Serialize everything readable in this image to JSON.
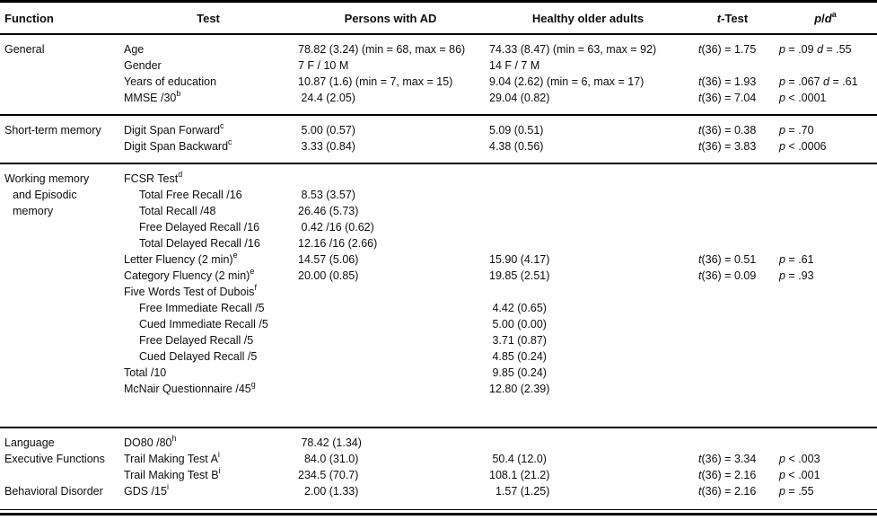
{
  "colors": {
    "background": "#ffffff",
    "text": "#0e0e0e",
    "rules": "#000000"
  },
  "table": {
    "headers": {
      "function": "Function",
      "test": "Test",
      "ad": "Persons with AD",
      "healthy": "Healthy older adults",
      "ttest": "t-Test",
      "pd": "p/d",
      "pd_sup": "a"
    },
    "sections": [
      {
        "rows": [
          {
            "fn": "General",
            "test": "Age",
            "ad": "78.82 (3.24) (min = 68, max = 86)",
            "healthy": "74.33 (8.47) (min = 63, max = 92)",
            "t": "t(36) = 1.75",
            "pd": "p = .09 d = .55"
          },
          {
            "test": "Gender",
            "ad": "7 F / 10 M",
            "healthy": "14 F / 7 M"
          },
          {
            "test": "Years of education",
            "ad": "10.87 (1.6) (min = 7, max = 15)",
            "healthy": "9.04 (2.62) (min = 6, max = 17)",
            "t": "t(36) = 1.93",
            "pd": "p = .067 d = .61"
          },
          {
            "test": "MMSE /30",
            "sup": "b",
            "ad": " 24.4 (2.05)",
            "healthy": "29.04 (0.82)",
            "t": "t(36) = 7.04",
            "pd": "p < .0001"
          }
        ]
      },
      {
        "rows": [
          {
            "fn": "Short-term memory",
            "test": "Digit Span Forward",
            "sup": "c",
            "ad": " 5.00 (0.57)",
            "healthy": "5.09 (0.51)",
            "t": "t(36) = 0.38",
            "pd": "p = .70"
          },
          {
            "test": "Digit Span Backward",
            "sup": "c",
            "ad": " 3.33 (0.84)",
            "healthy": "4.38 (0.56)",
            "t": "t(36) = 3.83",
            "pd": "p < .0006"
          }
        ]
      },
      {
        "rows": [
          {
            "fn_lines": [
              "Working memory",
              "and Episodic",
              "memory"
            ],
            "test": "FCSR Test",
            "sup": "d"
          },
          {
            "test": "Total Free Recall /16",
            "indent": true,
            "ad": " 8.53 (3.57)"
          },
          {
            "test": "Total Recall /48",
            "indent": true,
            "ad": "26.46 (5.73)"
          },
          {
            "test": "Free Delayed Recall /16",
            "indent": true,
            "ad": " 0.42 /16 (0.62)"
          },
          {
            "test": "Total Delayed Recall /16",
            "indent": true,
            "ad": "12.16 /16 (2.66)"
          },
          {
            "test": "Letter Fluency (2 min)",
            "sup": "e",
            "ad": "14.57 (5.06)",
            "healthy": "15.90 (4.17)",
            "t": "t(36) = 0.51",
            "pd": "p = .61"
          },
          {
            "test": "Category Fluency (2 min)",
            "sup": "e",
            "ad": "20.00 (0.85)",
            "healthy": "19.85 (2.51)",
            "t": "t(36) = 0.09",
            "pd": "p = .93"
          },
          {
            "test": "Five Words Test of Dubois",
            "sup": "f"
          },
          {
            "test": "Free Immediate Recall /5",
            "indent": true,
            "healthy": " 4.42 (0.65)"
          },
          {
            "test": "Cued Immediate Recall /5",
            "indent": true,
            "healthy": " 5.00 (0.00)"
          },
          {
            "test": "Free Delayed Recall /5",
            "indent": true,
            "healthy": " 3.71 (0.87)"
          },
          {
            "test": "Cued Delayed Recall /5",
            "indent": true,
            "healthy": " 4.85 (0.24)"
          },
          {
            "test": "Total /10",
            "healthy": " 9.85 (0.24)"
          },
          {
            "test": "McNair Questionnaire /45",
            "sup": "g",
            "healthy": "12.80 (2.39)"
          }
        ]
      },
      {
        "rows": [
          {
            "fn": "Language",
            "test": "DO80 /80",
            "sup": "h",
            "ad": " 78.42 (1.34)"
          },
          {
            "fn": "Executive Functions",
            "test": "Trail Making Test A",
            "sup": "i",
            "ad": "  84.0 (31.0)",
            "healthy": " 50.4 (12.0)",
            "t": "t(36) = 3.34",
            "pd": "p < .003"
          },
          {
            "test": "Trail Making Test B",
            "sup": "i",
            "ad": "234.5 (70.7)",
            "healthy": "108.1 (21.2)",
            "t": "t(36) = 2.16",
            "pd": "p < .001"
          },
          {
            "fn": "Behavioral Disorder",
            "test": "GDS /15",
            "sup": "i",
            "ad": "  2.00 (1.33)",
            "healthy": "  1.57 (1.25)",
            "t": "t(36) = 2.16",
            "pd": "p = .55"
          }
        ]
      }
    ]
  }
}
